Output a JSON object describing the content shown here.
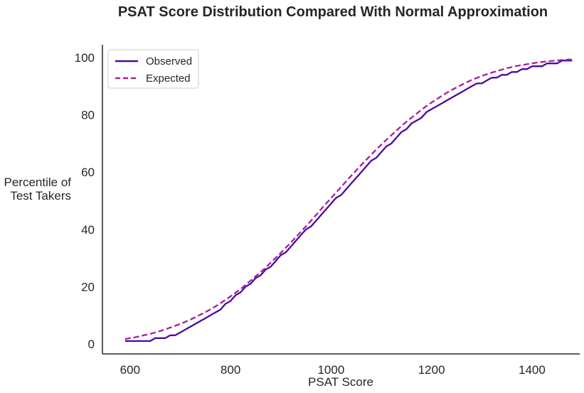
{
  "chart_data": {
    "type": "line",
    "title": "PSAT Score Distribution Compared With Normal Approximation",
    "xlabel": "PSAT Score",
    "ylabel": [
      "Percentile of",
      "Test Takers"
    ],
    "xlim": [
      545,
      1495
    ],
    "ylim": [
      -3.5,
      104.5
    ],
    "xticks": [
      600,
      800,
      1000,
      1200,
      1400
    ],
    "yticks": [
      0,
      20,
      40,
      60,
      80,
      100
    ],
    "grid": false,
    "legend_position": "top-left",
    "series": [
      {
        "name": "Observed",
        "color": "#4B0AA0",
        "style": "solid",
        "x": [
          590,
          600,
          610,
          620,
          630,
          640,
          650,
          660,
          670,
          680,
          690,
          700,
          710,
          720,
          730,
          740,
          750,
          760,
          770,
          780,
          790,
          800,
          810,
          820,
          830,
          840,
          850,
          860,
          870,
          880,
          890,
          900,
          910,
          920,
          930,
          940,
          950,
          960,
          970,
          980,
          990,
          1000,
          1010,
          1020,
          1030,
          1040,
          1050,
          1060,
          1070,
          1080,
          1090,
          1100,
          1110,
          1120,
          1130,
          1140,
          1150,
          1160,
          1170,
          1180,
          1190,
          1200,
          1210,
          1220,
          1230,
          1240,
          1250,
          1260,
          1270,
          1280,
          1290,
          1300,
          1310,
          1320,
          1330,
          1340,
          1350,
          1360,
          1370,
          1380,
          1390,
          1400,
          1410,
          1420,
          1430,
          1440,
          1450,
          1460,
          1470,
          1480
        ],
        "y": [
          1,
          1,
          1,
          1,
          1,
          1,
          2,
          2,
          2,
          3,
          3,
          4,
          5,
          6,
          7,
          8,
          9,
          10,
          11,
          12,
          14,
          15,
          17,
          18,
          20,
          21,
          23,
          24,
          26,
          27,
          29,
          31,
          32,
          34,
          36,
          38,
          40,
          41,
          43,
          45,
          47,
          49,
          51,
          52,
          54,
          56,
          58,
          60,
          62,
          64,
          65,
          67,
          69,
          70,
          72,
          74,
          75,
          77,
          78,
          79,
          81,
          82,
          83,
          84,
          85,
          86,
          87,
          88,
          89,
          90,
          91,
          91,
          92,
          93,
          93,
          94,
          94,
          95,
          95,
          96,
          96,
          97,
          97,
          97,
          98,
          98,
          98,
          99,
          99,
          99
        ]
      },
      {
        "name": "Expected",
        "color": "#A8209A",
        "style": "dashed",
        "x": [
          590,
          600,
          610,
          620,
          630,
          640,
          650,
          660,
          670,
          680,
          690,
          700,
          710,
          720,
          730,
          740,
          750,
          760,
          770,
          780,
          790,
          800,
          810,
          820,
          830,
          840,
          850,
          860,
          870,
          880,
          890,
          900,
          910,
          920,
          930,
          940,
          950,
          960,
          970,
          980,
          990,
          1000,
          1010,
          1020,
          1030,
          1040,
          1050,
          1060,
          1070,
          1080,
          1090,
          1100,
          1110,
          1120,
          1130,
          1140,
          1150,
          1160,
          1170,
          1180,
          1190,
          1200,
          1210,
          1220,
          1230,
          1240,
          1250,
          1260,
          1270,
          1280,
          1290,
          1300,
          1310,
          1320,
          1330,
          1340,
          1350,
          1360,
          1370,
          1380,
          1390,
          1400,
          1410,
          1420,
          1430,
          1440,
          1450,
          1460,
          1470,
          1480
        ],
        "y": [
          1.7,
          2.0,
          2.3,
          2.7,
          3.1,
          3.5,
          4.0,
          4.5,
          5.1,
          5.7,
          6.3,
          7.0,
          7.7,
          8.5,
          9.3,
          10.2,
          11.1,
          12.1,
          13.1,
          14.2,
          15.4,
          16.6,
          17.9,
          19.2,
          20.6,
          22.1,
          23.6,
          25.1,
          26.7,
          28.4,
          30.1,
          31.8,
          33.6,
          35.4,
          37.3,
          39.2,
          41.1,
          43.0,
          45.0,
          47.0,
          49.0,
          50.9,
          52.9,
          54.8,
          56.8,
          58.7,
          60.6,
          62.5,
          64.3,
          66.1,
          67.9,
          69.6,
          71.3,
          72.9,
          74.5,
          76.1,
          77.6,
          79.0,
          80.4,
          81.8,
          83.1,
          84.3,
          85.5,
          86.6,
          87.7,
          88.7,
          89.6,
          90.5,
          91.4,
          92.2,
          92.9,
          93.6,
          94.2,
          94.8,
          95.3,
          95.8,
          96.3,
          96.7,
          97.1,
          97.4,
          97.7,
          98.0,
          98.3,
          98.5,
          98.7,
          98.9,
          99.0,
          99.2,
          99.3,
          99.4
        ]
      }
    ]
  }
}
